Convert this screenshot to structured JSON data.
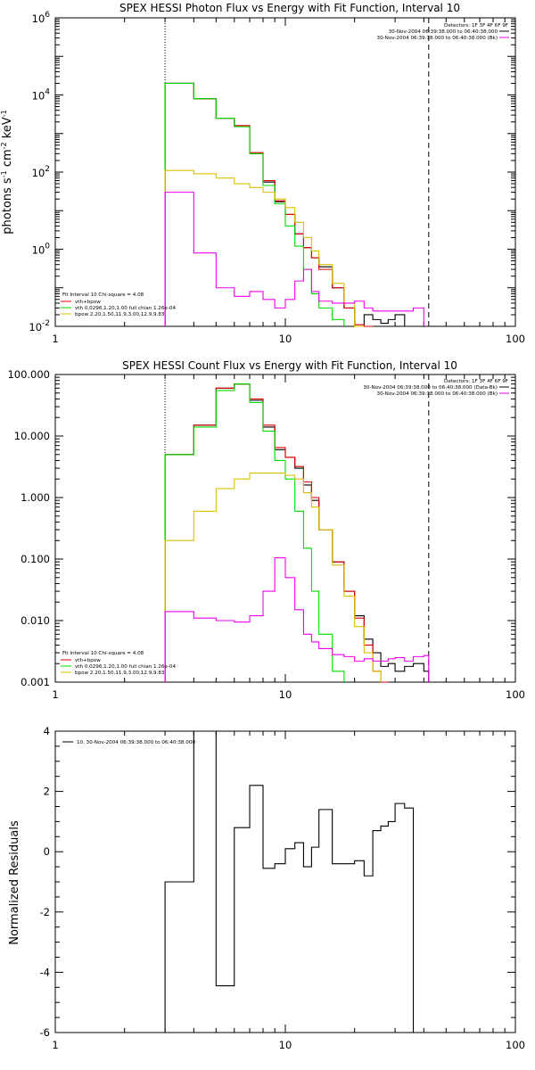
{
  "colors": {
    "data": "#000000",
    "total": "#e00000",
    "vth": "#00dd00",
    "bpow": "#d8c000",
    "bk": "#ee00ee"
  },
  "chart_data": [
    {
      "type": "line",
      "title": "SPEX HESSI Photon Flux vs Energy with Fit Function, Interval 10",
      "xlabel": "",
      "ylabel": "photons s-1 cm-2 keV-1",
      "ylabel_parts": [
        "photons s",
        "-1",
        " cm",
        "-2",
        " keV",
        "-1"
      ],
      "xscale": "log",
      "yscale": "log",
      "xlim": [
        1,
        100
      ],
      "ylim": [
        0.01,
        1000000
      ],
      "xticks": [
        {
          "v": 1,
          "t": "1"
        },
        {
          "v": 10,
          "t": "10"
        },
        {
          "v": 100,
          "t": "100"
        }
      ],
      "yticks": [
        {
          "v": 0.01,
          "b": "10",
          "e": "-2"
        },
        {
          "v": 1,
          "b": "10",
          "e": "0"
        },
        {
          "v": 100,
          "b": "10",
          "e": "2"
        },
        {
          "v": 10000,
          "b": "10",
          "e": "4"
        },
        {
          "v": 1000000,
          "b": "10",
          "e": "6"
        }
      ],
      "fit_range_lines": [
        {
          "x": 3,
          "style": "dotted"
        },
        {
          "x": 42,
          "style": "dashed"
        }
      ],
      "legend_top_right": {
        "lines": [
          "Detectors: 1F 3F 4F 6F 9F",
          "30-Nov-2004 06:39:38.000 to 06:40:38.000",
          "30-Nov-2004 06:39:38.000 to 06:40:38.000 (Bk)"
        ],
        "line_colors": [
          "",
          "#000000",
          "#ee00ee"
        ]
      },
      "legend_bottom_left": {
        "lines": [
          "Fit Interval 10   Chi-square = 4.08",
          "vth+bpow",
          "vth 0.0296,1.20,1.00  full chian 1.26e-04",
          "bpow 2.20,1.50,11.9,3.00,12.9,9.83"
        ],
        "line_colors": [
          "",
          "#e00000",
          "#00dd00",
          "#d8c000"
        ]
      },
      "edges": [
        3,
        4,
        5,
        6,
        7,
        8,
        9,
        10,
        11,
        12,
        13,
        14,
        16,
        18,
        20,
        22,
        24,
        26,
        28,
        30,
        33,
        36,
        40
      ],
      "series": [
        {
          "name": "data",
          "color": "#000000",
          "values": [
            20000,
            8000,
            2500,
            1600,
            300,
            55,
            17,
            8,
            2.5,
            1.1,
            0.6,
            0.35,
            0.1,
            0.03,
            0.01,
            0.02,
            0.015,
            0.012,
            0.015,
            0.02,
            null,
            null
          ]
        },
        {
          "name": "vth+bpow",
          "color": "#e00000",
          "values": [
            20000,
            8000,
            2500,
            1600,
            320,
            60,
            18,
            8,
            2.5,
            1.1,
            0.6,
            0.3,
            0.1,
            0.03,
            0.011,
            0.01,
            null,
            null,
            null,
            null,
            null,
            null
          ]
        },
        {
          "name": "vth",
          "color": "#00dd00",
          "values": [
            20000,
            8000,
            2500,
            1500,
            300,
            45,
            15,
            4,
            1.2,
            0.3,
            0.07,
            0.03,
            0.015,
            null,
            null,
            null,
            null,
            null,
            null,
            null,
            null,
            null
          ]
        },
        {
          "name": "bpow",
          "color": "#d8c000",
          "values": [
            110,
            90,
            70,
            50,
            40,
            30,
            20,
            12,
            5,
            2,
            0.9,
            0.4,
            0.13,
            0.04,
            0.01,
            null,
            null,
            null,
            null,
            null,
            null,
            null
          ]
        },
        {
          "name": "Bk",
          "color": "#ee00ee",
          "values": [
            30,
            0.8,
            0.1,
            0.06,
            0.08,
            0.05,
            0.03,
            0.05,
            0.15,
            0.3,
            0.08,
            0.045,
            0.04,
            0.04,
            0.045,
            0.03,
            0.025,
            0.025,
            0.025,
            0.025,
            0.025,
            0.03
          ]
        }
      ]
    },
    {
      "type": "line",
      "title": "SPEX HESSI Count Flux vs Energy with Fit Function, Interval 10",
      "xlabel": "",
      "ylabel": "",
      "xscale": "log",
      "yscale": "log",
      "xlim": [
        1,
        100
      ],
      "ylim": [
        0.001,
        100
      ],
      "xticks": [
        {
          "v": 1,
          "t": "1"
        },
        {
          "v": 10,
          "t": "10"
        },
        {
          "v": 100,
          "t": "100"
        }
      ],
      "yticks": [
        {
          "v": 0.001,
          "t": "0.001"
        },
        {
          "v": 0.01,
          "t": "0.010"
        },
        {
          "v": 0.1,
          "t": "0.100"
        },
        {
          "v": 1,
          "t": "1.000"
        },
        {
          "v": 10,
          "t": "10.000"
        },
        {
          "v": 100,
          "t": "100.000"
        }
      ],
      "fit_range_lines": [
        {
          "x": 3,
          "style": "dotted"
        },
        {
          "x": 42,
          "style": "dashed"
        }
      ],
      "legend_top_right": {
        "lines": [
          "Detectors: 1F 3F 4F 6F 9F",
          "30-Nov-2004 06:39:38.000 to 06:40:38.000 (Data-Bk)",
          "30-Nov-2004 06:39:38.000 to 06:40:38.000 (Bk)"
        ],
        "line_colors": [
          "",
          "#000000",
          "#ee00ee"
        ]
      },
      "legend_bottom_left": {
        "lines": [
          "Fit Interval 10   Chi-square = 4.08",
          "vth+bpow",
          "vth 0.0296,1.20,1.00  full chian 1.26e-04",
          "bpow 2.20,1.50,11.9,3.00,12.9,9.83"
        ],
        "line_colors": [
          "",
          "#e00000",
          "#00dd00",
          "#d8c000"
        ]
      },
      "edges": [
        3,
        4,
        5,
        6,
        7,
        8,
        9,
        10,
        11,
        12,
        13,
        14,
        16,
        18,
        20,
        22,
        24,
        26,
        28,
        30,
        33,
        36,
        40,
        42
      ],
      "series": [
        {
          "name": "data",
          "color": "#000000",
          "values": [
            5,
            15,
            60,
            70,
            38,
            14,
            6,
            4.5,
            3,
            1.6,
            0.9,
            0.3,
            0.09,
            0.03,
            0.012,
            0.005,
            0.003,
            0.0018,
            0.002,
            0.0015,
            0.0018,
            0.002,
            0.0015
          ]
        },
        {
          "name": "vth+bpow",
          "color": "#e00000",
          "values": [
            5,
            15,
            60,
            70,
            40,
            15,
            6.5,
            4.5,
            3.2,
            1.8,
            1,
            0.3,
            0.09,
            0.03,
            0.011,
            0.004,
            0.0015,
            0.001,
            null,
            null,
            null,
            null,
            null
          ]
        },
        {
          "name": "vth",
          "color": "#00dd00",
          "values": [
            5,
            14,
            55,
            70,
            35,
            12,
            4,
            2,
            0.6,
            0.15,
            0.03,
            0.006,
            0.0015,
            null,
            null,
            null,
            null,
            null,
            null,
            null,
            null,
            null,
            null
          ]
        },
        {
          "name": "bpow",
          "color": "#d8c000",
          "values": [
            0.2,
            0.6,
            1.4,
            2,
            2.5,
            2.5,
            2.5,
            2.3,
            2,
            1.2,
            0.7,
            0.3,
            0.08,
            0.025,
            0.008,
            0.003,
            0.0015,
            null,
            null,
            null,
            null,
            null,
            null
          ]
        },
        {
          "name": "Bk",
          "color": "#ee00ee",
          "values": [
            0.014,
            0.011,
            0.01,
            0.0095,
            0.012,
            0.03,
            0.105,
            0.05,
            0.015,
            0.006,
            0.0045,
            0.0035,
            0.0028,
            0.0026,
            0.0022,
            0.0024,
            0.0022,
            0.0022,
            0.0024,
            0.0025,
            0.0022,
            0.0026,
            0.0027
          ]
        }
      ]
    },
    {
      "type": "line",
      "title": "",
      "xlabel": "",
      "ylabel": "Normalized Residuals",
      "xscale": "log",
      "yscale": "linear",
      "xlim": [
        1,
        100
      ],
      "ylim": [
        -6,
        4
      ],
      "xticks": [
        {
          "v": 1,
          "t": "1"
        },
        {
          "v": 10,
          "t": "10"
        },
        {
          "v": 100,
          "t": "100"
        }
      ],
      "yticks": [
        {
          "v": -6,
          "t": "-6"
        },
        {
          "v": -4,
          "t": "-4"
        },
        {
          "v": -2,
          "t": "-2"
        },
        {
          "v": 0,
          "t": "0"
        },
        {
          "v": 2,
          "t": "2"
        },
        {
          "v": 4,
          "t": "4"
        }
      ],
      "legend": "10. 30-Nov-2004 06:39:38.000 to 06:40:38.000",
      "edges": [
        3,
        4,
        5,
        6,
        7,
        8,
        9,
        10,
        11,
        12,
        13,
        14,
        16,
        18,
        20,
        22,
        24,
        26,
        28,
        30,
        33,
        36,
        40,
        42
      ],
      "series": [
        {
          "name": "residuals",
          "color": "#000000",
          "values": [
            -1,
            8,
            -4.45,
            0.8,
            2.2,
            -0.55,
            -0.4,
            0.1,
            0.3,
            -0.5,
            0.15,
            1.4,
            -0.4,
            -0.4,
            -0.3,
            -0.8,
            0.7,
            0.85,
            1.0,
            1.6,
            1.45,
            -7
          ]
        }
      ]
    }
  ]
}
